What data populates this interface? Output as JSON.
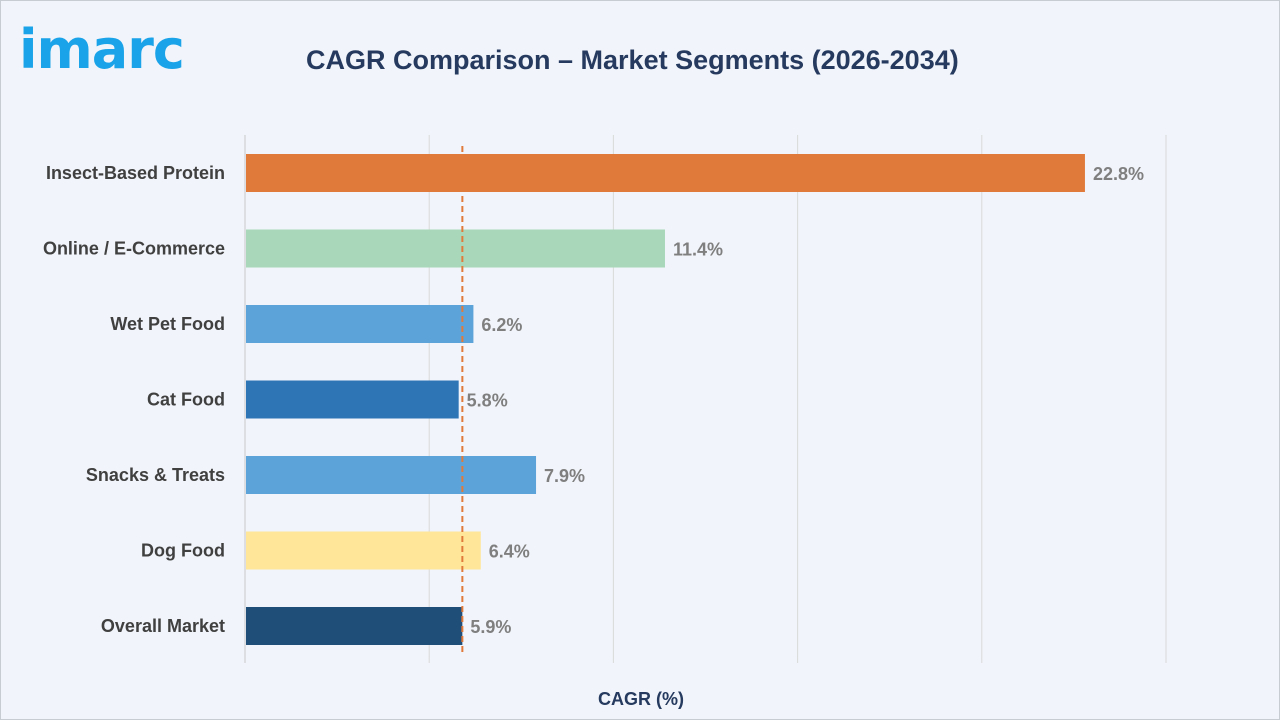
{
  "logo_text": "imarc",
  "chart_data": {
    "type": "bar",
    "orientation": "horizontal",
    "title": "CAGR Comparison – Market Segments (2026-2034)",
    "xlabel": "CAGR (%)",
    "ylabel": "",
    "xlim": [
      0,
      25
    ],
    "grid": true,
    "reference_line": 5.9,
    "categories": [
      "Insect-Based Protein",
      "Online / E-Commerce",
      "Wet Pet Food",
      "Cat Food",
      "Snacks & Treats",
      "Dog Food",
      "Overall Market"
    ],
    "values": [
      22.8,
      11.4,
      6.2,
      5.8,
      7.9,
      6.4,
      5.9
    ],
    "value_labels": [
      "22.8%",
      "11.4%",
      "6.2%",
      "5.8%",
      "7.9%",
      "6.4%",
      "5.9%"
    ],
    "colors": [
      "#e07a3b",
      "#a8d8b9",
      "#5ba3d9",
      "#2e75b6",
      "#5ba3d9",
      "#ffe699",
      "#1f4e79"
    ],
    "reference_line_color": "#e07a3b"
  }
}
